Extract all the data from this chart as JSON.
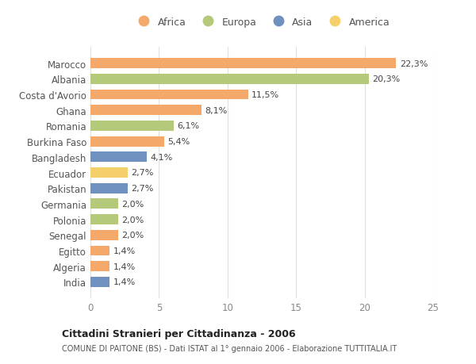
{
  "countries": [
    "Marocco",
    "Albania",
    "Costa d'Avorio",
    "Ghana",
    "Romania",
    "Burkina Faso",
    "Bangladesh",
    "Ecuador",
    "Pakistan",
    "Germania",
    "Polonia",
    "Senegal",
    "Egitto",
    "Algeria",
    "India"
  ],
  "values": [
    22.3,
    20.3,
    11.5,
    8.1,
    6.1,
    5.4,
    4.1,
    2.7,
    2.7,
    2.0,
    2.0,
    2.0,
    1.4,
    1.4,
    1.4
  ],
  "labels": [
    "22,3%",
    "20,3%",
    "11,5%",
    "8,1%",
    "6,1%",
    "5,4%",
    "4,1%",
    "2,7%",
    "2,7%",
    "2,0%",
    "2,0%",
    "2,0%",
    "1,4%",
    "1,4%",
    "1,4%"
  ],
  "continents": [
    "Africa",
    "Europa",
    "Africa",
    "Africa",
    "Europa",
    "Africa",
    "Asia",
    "America",
    "Asia",
    "Europa",
    "Europa",
    "Africa",
    "Africa",
    "Africa",
    "Asia"
  ],
  "colors": {
    "Africa": "#F4A96A",
    "Europa": "#B5C97A",
    "Asia": "#7090C0",
    "America": "#F5D06A"
  },
  "legend_order": [
    "Africa",
    "Europa",
    "Asia",
    "America"
  ],
  "xlim": [
    0,
    25
  ],
  "xticks": [
    0,
    5,
    10,
    15,
    20,
    25
  ],
  "title": "Cittadini Stranieri per Cittadinanza - 2006",
  "subtitle": "COMUNE DI PAITONE (BS) - Dati ISTAT al 1° gennaio 2006 - Elaborazione TUTTITALIA.IT",
  "background_color": "#ffffff",
  "grid_color": "#e0e0e0"
}
